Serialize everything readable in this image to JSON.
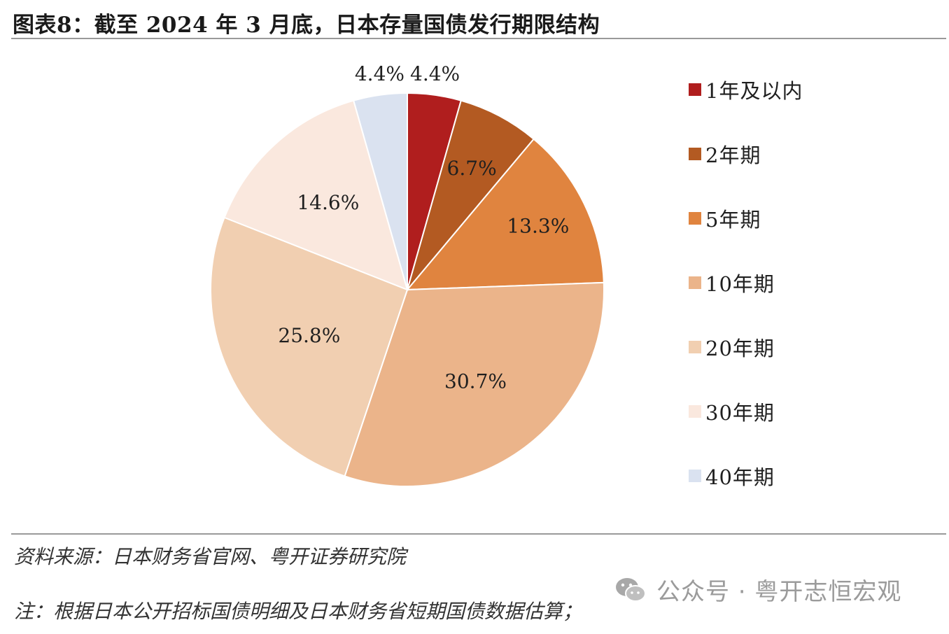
{
  "header": {
    "title": "图表8：截至 2024 年 3 月底，日本存量国债发行期限结构"
  },
  "chart_data": {
    "type": "pie",
    "title": "图表8：截至 2024 年 3 月底，日本存量国债发行期限结构",
    "slices": [
      {
        "label": "1年及以内",
        "value": 4.4,
        "display": "4.4%",
        "color": "#b01e1e"
      },
      {
        "label": "2年期",
        "value": 6.7,
        "display": "6.7%",
        "color": "#b35a22"
      },
      {
        "label": "5年期",
        "value": 13.3,
        "display": "13.3%",
        "color": "#e0843f"
      },
      {
        "label": "10年期",
        "value": 30.7,
        "display": "30.7%",
        "color": "#ebb48a"
      },
      {
        "label": "20年期",
        "value": 25.8,
        "display": "25.8%",
        "color": "#f1cfb1"
      },
      {
        "label": "30年期",
        "value": 14.6,
        "display": "14.6%",
        "color": "#fae8de"
      },
      {
        "label": "40年期",
        "value": 4.4,
        "display": "4.4%",
        "color": "#dae2f0"
      }
    ],
    "start_angle_deg": 0,
    "direction": "clockwise",
    "legend_position": "right"
  },
  "footer": {
    "source": "资料来源：日本财务省官网、粤开证券研究院",
    "note": "注：根据日本公开招标国债明细及日本财务省短期国债数据估算；",
    "watermark": "公众号 · 粤开志恒宏观",
    "watermark_icon": "wechat-icon"
  }
}
